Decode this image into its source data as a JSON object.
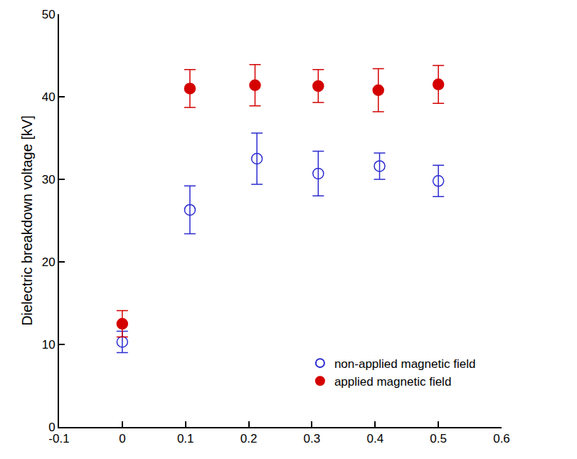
{
  "chart_data": {
    "type": "scatter",
    "y_label": "Dielectric breakdown voltage [kV]",
    "xlim": [
      -0.1,
      0.6
    ],
    "xticks": [
      -0.1,
      0,
      0.1,
      0.2,
      0.3,
      0.4,
      0.5,
      0.6
    ],
    "ylim": [
      0,
      50
    ],
    "yticks": [
      0,
      10,
      20,
      30,
      40,
      50
    ],
    "grid": false,
    "legend": "bottom right",
    "series": [
      {
        "name": "non-applied magnetic field",
        "color": "#2b2bd1",
        "marker": "circle-open",
        "x": [
          0,
          0.107,
          0.213,
          0.31,
          0.407,
          0.5
        ],
        "values": [
          10.3,
          26.3,
          32.5,
          30.7,
          31.6,
          29.8
        ],
        "error": [
          1.3,
          2.9,
          3.1,
          2.7,
          1.6,
          1.9
        ]
      },
      {
        "name": "applied magnetic field",
        "color": "#d40000",
        "marker": "circle",
        "x": [
          0,
          0.107,
          0.21,
          0.31,
          0.405,
          0.5
        ],
        "values": [
          12.5,
          41.0,
          41.4,
          41.3,
          40.8,
          41.5
        ],
        "error": [
          1.6,
          2.3,
          2.5,
          2.0,
          2.6,
          2.3
        ]
      }
    ]
  }
}
